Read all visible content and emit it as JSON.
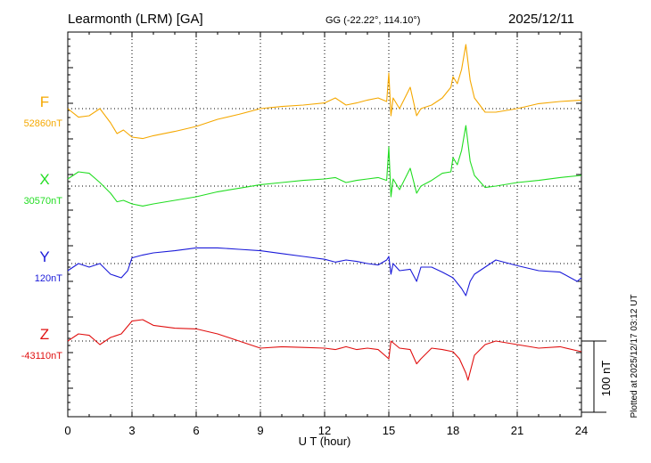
{
  "header": {
    "station": "Learmonth (LRM)  [GA]",
    "coords": "GG (-22.22°, 114.10°)",
    "date": "2025/12/11"
  },
  "plotted_note": "Plotted at 2025/12/17 03:12 UT",
  "scale_label": "100 nT",
  "chart_data": {
    "type": "line",
    "xlabel": "U T (hour)",
    "xlim": [
      0,
      24
    ],
    "x_ticks": [
      "0",
      "3",
      "6",
      "9",
      "12",
      "15",
      "18",
      "21",
      "24"
    ],
    "scale_bar_nT": 100,
    "series": [
      {
        "name": "F",
        "baseline_label": "52860nT",
        "color": "#f5a800",
        "x": [
          0,
          0.5,
          1,
          1.5,
          2,
          2.3,
          2.6,
          3,
          3.5,
          4,
          5,
          6,
          7,
          8,
          9,
          10,
          11,
          12,
          12.5,
          13,
          13.5,
          14,
          14.5,
          14.9,
          15,
          15.1,
          15.2,
          15.5,
          16,
          16.3,
          16.5,
          17,
          17.5,
          17.9,
          18,
          18.2,
          18.4,
          18.6,
          18.8,
          19,
          19.5,
          20,
          21,
          22,
          23,
          24
        ],
        "values": [
          0,
          -12,
          -10,
          0,
          -20,
          -35,
          -30,
          -40,
          -42,
          -38,
          -32,
          -25,
          -15,
          -8,
          0,
          3,
          5,
          8,
          15,
          5,
          8,
          12,
          15,
          10,
          50,
          -10,
          15,
          0,
          30,
          -10,
          0,
          5,
          15,
          30,
          45,
          35,
          55,
          90,
          40,
          15,
          -5,
          -5,
          0,
          7,
          10,
          12
        ]
      },
      {
        "name": "X",
        "baseline_label": "30570nT",
        "color": "#22dd22",
        "x": [
          0,
          0.5,
          1,
          1.5,
          2,
          2.3,
          2.6,
          3,
          3.5,
          4,
          5,
          6,
          7,
          8,
          9,
          10,
          11,
          12,
          12.5,
          13,
          13.5,
          14,
          14.5,
          14.9,
          15,
          15.1,
          15.2,
          15.5,
          16,
          16.3,
          16.5,
          17,
          17.5,
          17.9,
          18,
          18.2,
          18.4,
          18.6,
          18.8,
          19,
          19.5,
          20,
          21,
          22,
          23,
          24
        ],
        "values": [
          10,
          20,
          18,
          5,
          -10,
          -22,
          -20,
          -25,
          -28,
          -25,
          -20,
          -15,
          -8,
          -3,
          2,
          5,
          8,
          10,
          12,
          5,
          8,
          10,
          12,
          8,
          55,
          -15,
          10,
          -5,
          25,
          -10,
          0,
          8,
          18,
          20,
          40,
          30,
          50,
          85,
          35,
          15,
          -2,
          0,
          5,
          8,
          12,
          15
        ]
      },
      {
        "name": "Y",
        "baseline_label": "120nT",
        "color": "#1a1ad9",
        "x": [
          0,
          0.5,
          1,
          1.5,
          2,
          2.5,
          2.8,
          3,
          3.5,
          4,
          5,
          6,
          7,
          8,
          9,
          10,
          11,
          12,
          12.5,
          13,
          13.5,
          14,
          14.5,
          14.9,
          15,
          15.1,
          15.2,
          15.5,
          16,
          16.3,
          16.5,
          17,
          17.5,
          18,
          18.4,
          18.6,
          18.8,
          19,
          19.5,
          20,
          21,
          22,
          23,
          23.8,
          24
        ],
        "values": [
          -10,
          0,
          -5,
          0,
          -15,
          -20,
          -10,
          8,
          12,
          15,
          18,
          22,
          22,
          20,
          18,
          14,
          10,
          6,
          2,
          5,
          3,
          0,
          -2,
          5,
          10,
          -15,
          0,
          -10,
          -8,
          -25,
          -5,
          -5,
          -12,
          -20,
          -35,
          -45,
          -25,
          -15,
          -5,
          5,
          -3,
          -10,
          -12,
          -25,
          -20
        ]
      },
      {
        "name": "Z",
        "baseline_label": "-43110nT",
        "color": "#e01010",
        "x": [
          0,
          0.5,
          1,
          1.5,
          2,
          2.5,
          3,
          3.5,
          4,
          5,
          6,
          7,
          8,
          9,
          10,
          11,
          12,
          12.5,
          13,
          13.5,
          14,
          14.5,
          15,
          15.1,
          15.5,
          16,
          16.3,
          16.5,
          17,
          17.5,
          18,
          18.3,
          18.6,
          18.7,
          19,
          19.5,
          20,
          21,
          22,
          23,
          24
        ],
        "values": [
          0,
          10,
          8,
          -5,
          5,
          10,
          28,
          30,
          22,
          18,
          17,
          10,
          0,
          -10,
          -8,
          -9,
          -10,
          -12,
          -8,
          -12,
          -10,
          -12,
          -25,
          0,
          -10,
          -12,
          -32,
          -25,
          -10,
          -12,
          -15,
          -25,
          -45,
          -55,
          -20,
          -5,
          0,
          -5,
          -10,
          -8,
          -15
        ]
      }
    ]
  }
}
